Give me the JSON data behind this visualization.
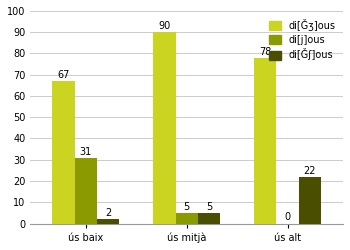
{
  "categories": [
    "ús baix",
    "ús mitjà",
    "ús alt"
  ],
  "series": [
    {
      "label": "di[Ǧʒ]ous",
      "values": [
        67,
        90,
        78
      ],
      "color": "#ccd422"
    },
    {
      "label": "di[j]ous",
      "values": [
        31,
        5,
        0
      ],
      "color": "#8a9a00"
    },
    {
      "label": "di[Ǧʃ]ous",
      "values": [
        2,
        5,
        22
      ],
      "color": "#4a4e00"
    }
  ],
  "ylim": [
    0,
    100
  ],
  "yticks": [
    0,
    10,
    20,
    30,
    40,
    50,
    60,
    70,
    80,
    90,
    100
  ],
  "bar_width": 0.22,
  "background_color": "#ffffff",
  "grid_color": "#cccccc",
  "tick_fontsize": 7,
  "legend_fontsize": 7,
  "value_fontsize": 7
}
